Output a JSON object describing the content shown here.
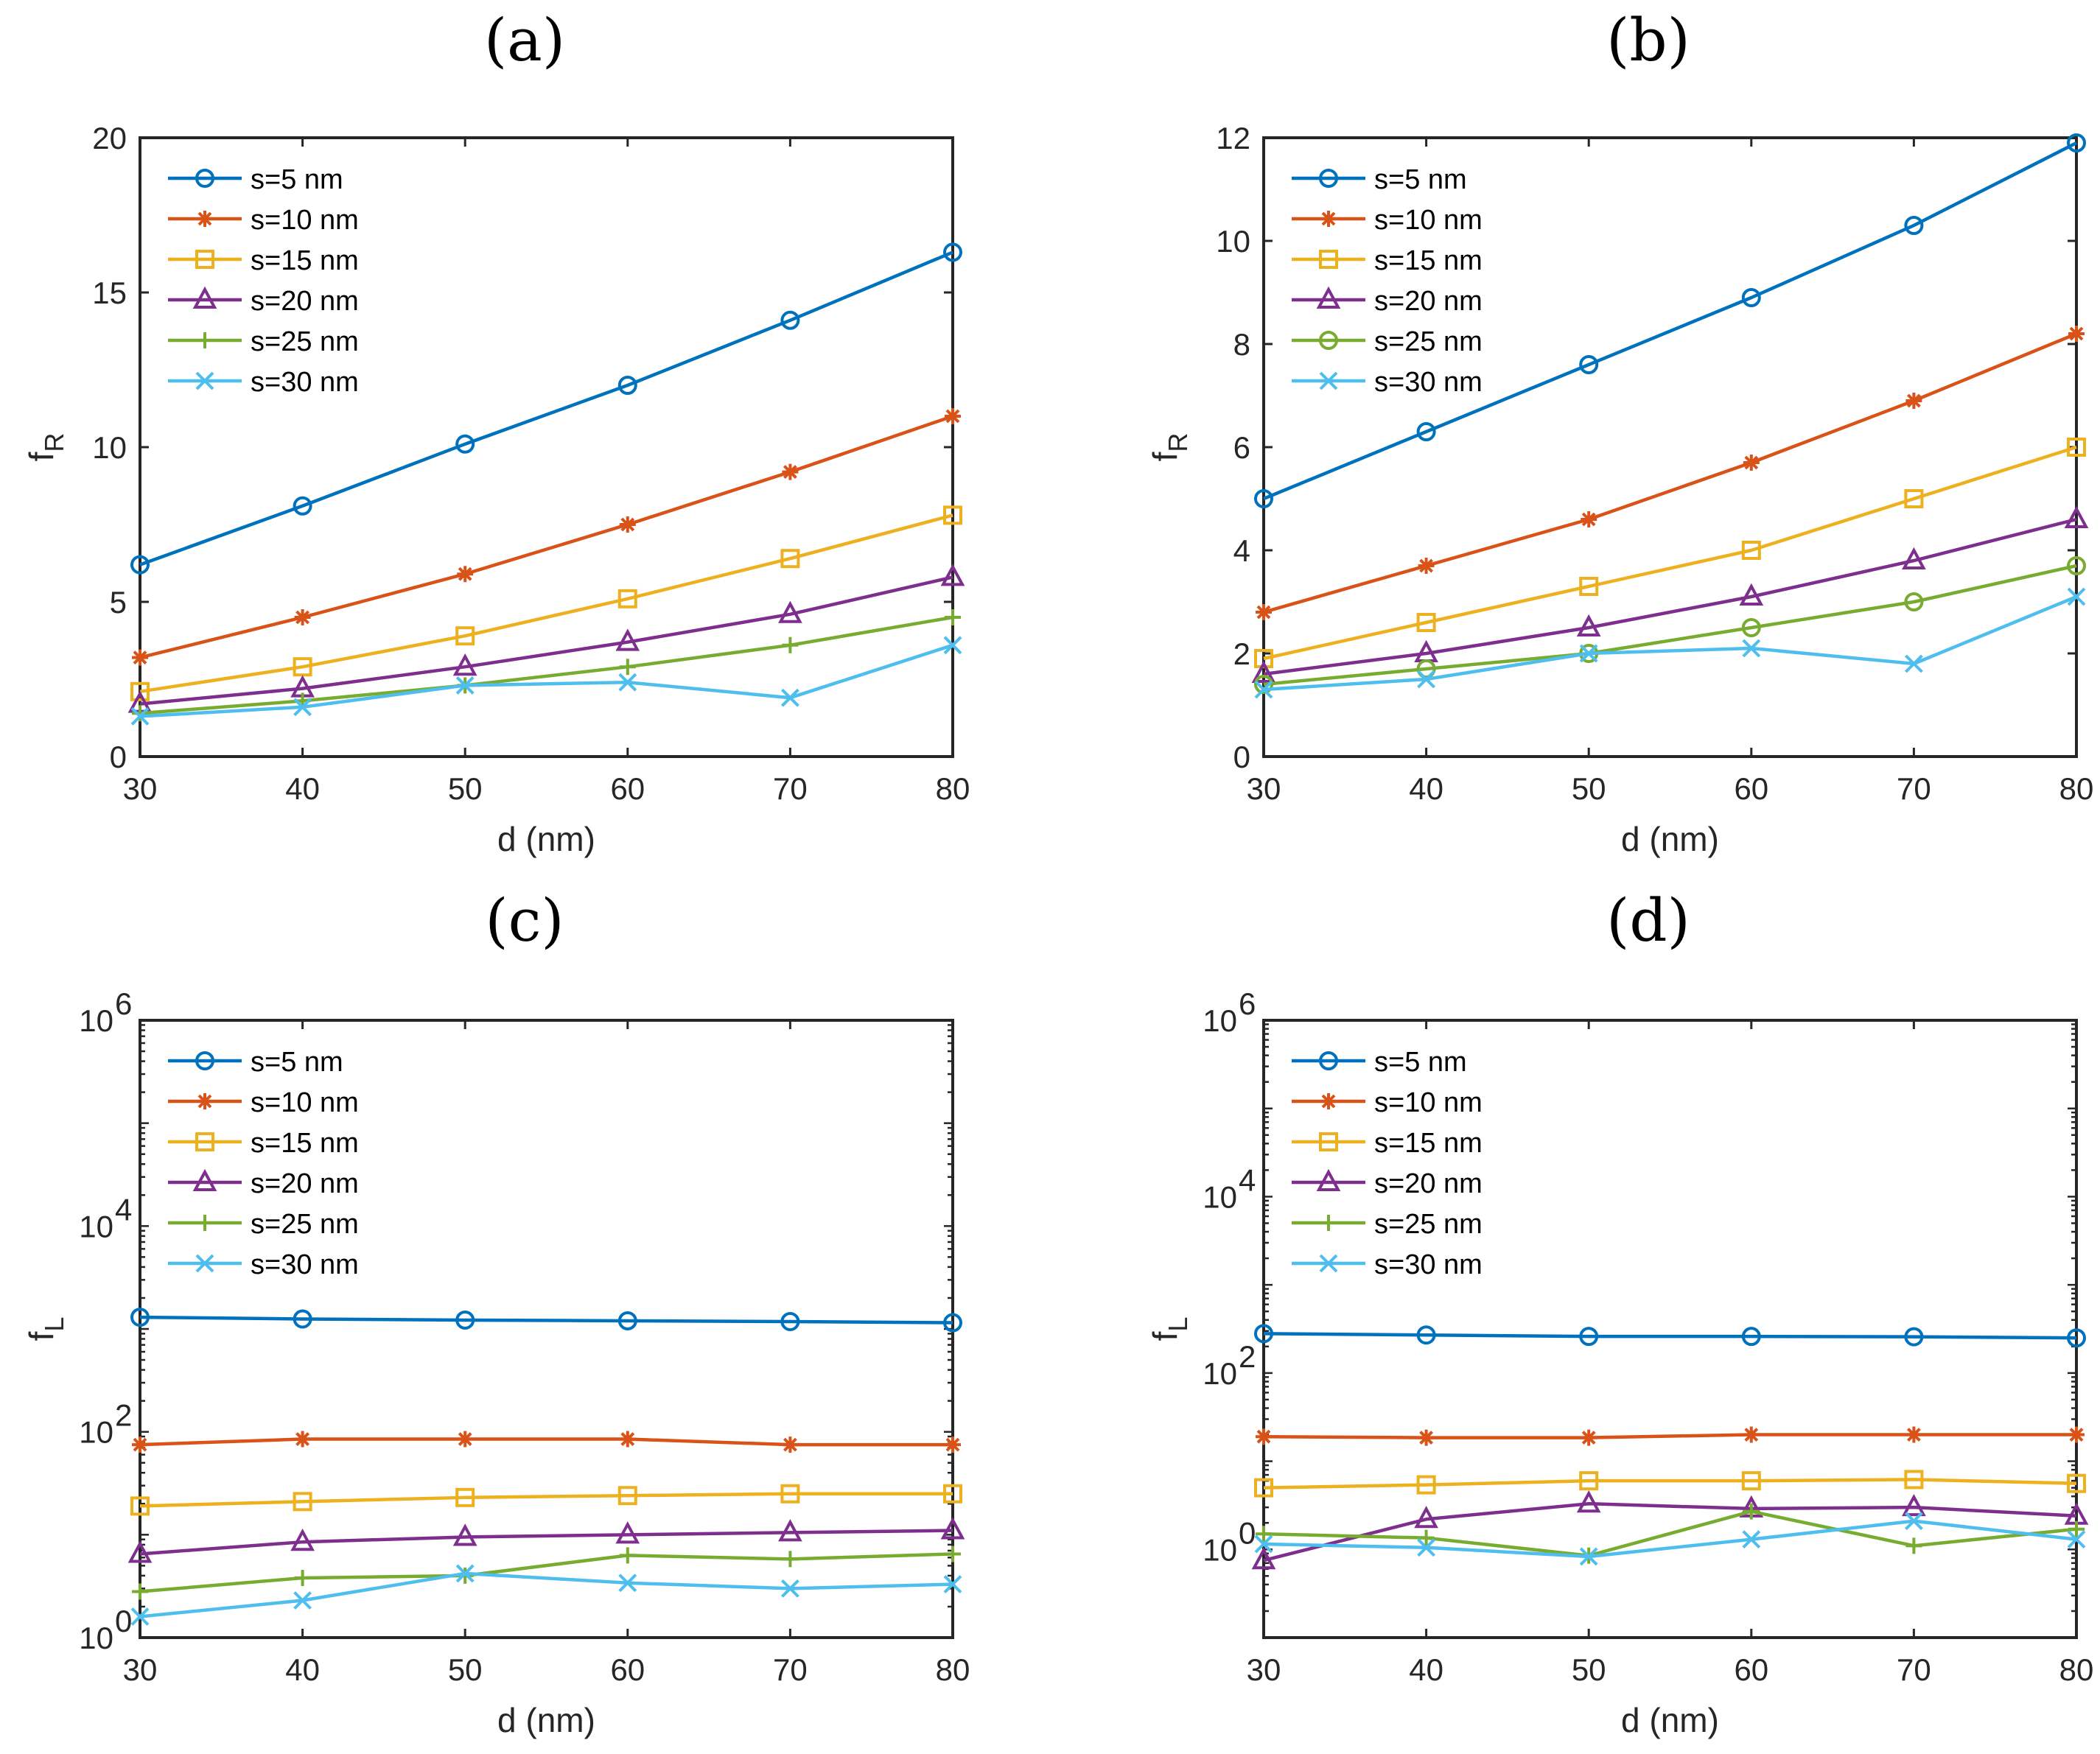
{
  "chart_data": [
    {
      "type": "line",
      "panel_label": "(a)",
      "xlabel": "d (nm)",
      "ylabel": "f",
      "ylabel_sub": "R",
      "yscale": "linear",
      "x": [
        30,
        40,
        50,
        60,
        70,
        80
      ],
      "xlim": [
        30,
        80
      ],
      "xticks": [
        "30",
        "40",
        "50",
        "60",
        "70",
        "80"
      ],
      "ylim": [
        0,
        20
      ],
      "yticks": [
        "0",
        "5",
        "10",
        "15",
        "20"
      ],
      "legend_position": "top-left",
      "series": [
        {
          "name": "s=5 nm",
          "marker": "circle",
          "color": "#0072BD",
          "values": [
            6.2,
            8.1,
            10.1,
            12.0,
            14.1,
            16.3
          ]
        },
        {
          "name": "s=10 nm",
          "marker": "star",
          "color": "#D95319",
          "values": [
            3.2,
            4.5,
            5.9,
            7.5,
            9.2,
            11.0
          ]
        },
        {
          "name": "s=15 nm",
          "marker": "square",
          "color": "#EDB120",
          "values": [
            2.1,
            2.9,
            3.9,
            5.1,
            6.4,
            7.8
          ]
        },
        {
          "name": "s=20 nm",
          "marker": "triangle",
          "color": "#7E2F8E",
          "values": [
            1.7,
            2.2,
            2.9,
            3.7,
            4.6,
            5.8
          ]
        },
        {
          "name": "s=25 nm",
          "marker": "plus",
          "color": "#77AC30",
          "values": [
            1.4,
            1.8,
            2.3,
            2.9,
            3.6,
            4.5
          ]
        },
        {
          "name": "s=30 nm",
          "marker": "x",
          "color": "#4DBEEE",
          "values": [
            1.3,
            1.6,
            2.3,
            2.4,
            1.9,
            3.6
          ]
        }
      ]
    },
    {
      "type": "line",
      "panel_label": "(b)",
      "xlabel": "d (nm)",
      "ylabel": "f",
      "ylabel_sub": "R",
      "yscale": "linear",
      "x": [
        30,
        40,
        50,
        60,
        70,
        80
      ],
      "xlim": [
        30,
        80
      ],
      "xticks": [
        "30",
        "40",
        "50",
        "60",
        "70",
        "80"
      ],
      "ylim": [
        0,
        12
      ],
      "yticks": [
        "0",
        "2",
        "4",
        "6",
        "8",
        "10",
        "12"
      ],
      "legend_position": "top-left",
      "series": [
        {
          "name": "s=5 nm",
          "marker": "circle",
          "color": "#0072BD",
          "values": [
            5.0,
            6.3,
            7.6,
            8.9,
            10.3,
            11.9
          ]
        },
        {
          "name": "s=10 nm",
          "marker": "star",
          "color": "#D95319",
          "values": [
            2.8,
            3.7,
            4.6,
            5.7,
            6.9,
            8.2
          ]
        },
        {
          "name": "s=15 nm",
          "marker": "square",
          "color": "#EDB120",
          "values": [
            1.9,
            2.6,
            3.3,
            4.0,
            5.0,
            6.0
          ]
        },
        {
          "name": "s=20 nm",
          "marker": "triangle",
          "color": "#7E2F8E",
          "values": [
            1.6,
            2.0,
            2.5,
            3.1,
            3.8,
            4.6
          ]
        },
        {
          "name": "s=25 nm",
          "marker": "circle",
          "color": "#77AC30",
          "values": [
            1.4,
            1.7,
            2.0,
            2.5,
            3.0,
            3.7
          ]
        },
        {
          "name": "s=30 nm",
          "marker": "x",
          "color": "#4DBEEE",
          "values": [
            1.3,
            1.5,
            2.0,
            2.1,
            1.8,
            3.1
          ]
        }
      ]
    },
    {
      "type": "line",
      "panel_label": "(c)",
      "xlabel": "d (nm)",
      "ylabel": "f",
      "ylabel_sub": "L",
      "yscale": "log",
      "x": [
        30,
        40,
        50,
        60,
        70,
        80
      ],
      "xlim": [
        30,
        80
      ],
      "xticks": [
        "30",
        "40",
        "50",
        "60",
        "70",
        "80"
      ],
      "ylim": [
        1,
        1000000
      ],
      "yticks": [
        {
          "base": "10",
          "exp": "0"
        },
        {
          "base": "10",
          "exp": "2"
        },
        {
          "base": "10",
          "exp": "4"
        },
        {
          "base": "10",
          "exp": "6"
        }
      ],
      "legend_position": "top-left",
      "series": [
        {
          "name": "s=5 nm",
          "marker": "circle",
          "color": "#0072BD",
          "values": [
            1300,
            1250,
            1220,
            1200,
            1180,
            1150
          ]
        },
        {
          "name": "s=10 nm",
          "marker": "star",
          "color": "#D95319",
          "values": [
            75,
            85,
            85,
            85,
            75,
            75
          ]
        },
        {
          "name": "s=15 nm",
          "marker": "square",
          "color": "#EDB120",
          "values": [
            19,
            21,
            23,
            24,
            25,
            25
          ]
        },
        {
          "name": "s=20 nm",
          "marker": "triangle",
          "color": "#7E2F8E",
          "values": [
            6.5,
            8.5,
            9.5,
            10,
            10.5,
            11
          ]
        },
        {
          "name": "s=25 nm",
          "marker": "plus",
          "color": "#77AC30",
          "values": [
            2.8,
            3.8,
            4.0,
            6.3,
            5.8,
            6.5
          ]
        },
        {
          "name": "s=30 nm",
          "marker": "x",
          "color": "#4DBEEE",
          "values": [
            1.6,
            2.3,
            4.2,
            3.4,
            3.0,
            3.3
          ]
        }
      ]
    },
    {
      "type": "line",
      "panel_label": "(d)",
      "xlabel": "d (nm)",
      "ylabel": "f",
      "ylabel_sub": "L",
      "yscale": "log",
      "x": [
        30,
        40,
        50,
        60,
        70,
        80
      ],
      "xlim": [
        30,
        80
      ],
      "xticks": [
        "30",
        "40",
        "50",
        "60",
        "70",
        "80"
      ],
      "ylim": [
        0.1,
        1000000
      ],
      "yticks": [
        {
          "base": "10",
          "exp": "0"
        },
        {
          "base": "10",
          "exp": "2"
        },
        {
          "base": "10",
          "exp": "4"
        },
        {
          "base": "10",
          "exp": "6"
        }
      ],
      "legend_position": "top-left",
      "series": [
        {
          "name": "s=5 nm",
          "marker": "circle",
          "color": "#0072BD",
          "values": [
            280,
            270,
            260,
            260,
            258,
            250
          ]
        },
        {
          "name": "s=10 nm",
          "marker": "star",
          "color": "#D95319",
          "values": [
            19,
            18.5,
            18.5,
            20,
            20,
            20
          ]
        },
        {
          "name": "s=15 nm",
          "marker": "square",
          "color": "#EDB120",
          "values": [
            5.0,
            5.4,
            6.0,
            6.0,
            6.2,
            5.6
          ]
        },
        {
          "name": "s=20 nm",
          "marker": "triangle",
          "color": "#7E2F8E",
          "values": [
            0.75,
            2.2,
            3.3,
            2.9,
            3.0,
            2.4
          ]
        },
        {
          "name": "s=25 nm",
          "marker": "plus",
          "color": "#77AC30",
          "values": [
            1.5,
            1.35,
            0.85,
            2.7,
            1.1,
            1.7
          ]
        },
        {
          "name": "s=30 nm",
          "marker": "x",
          "color": "#4DBEEE",
          "values": [
            1.15,
            1.05,
            0.83,
            1.3,
            2.1,
            1.3
          ]
        }
      ]
    }
  ]
}
